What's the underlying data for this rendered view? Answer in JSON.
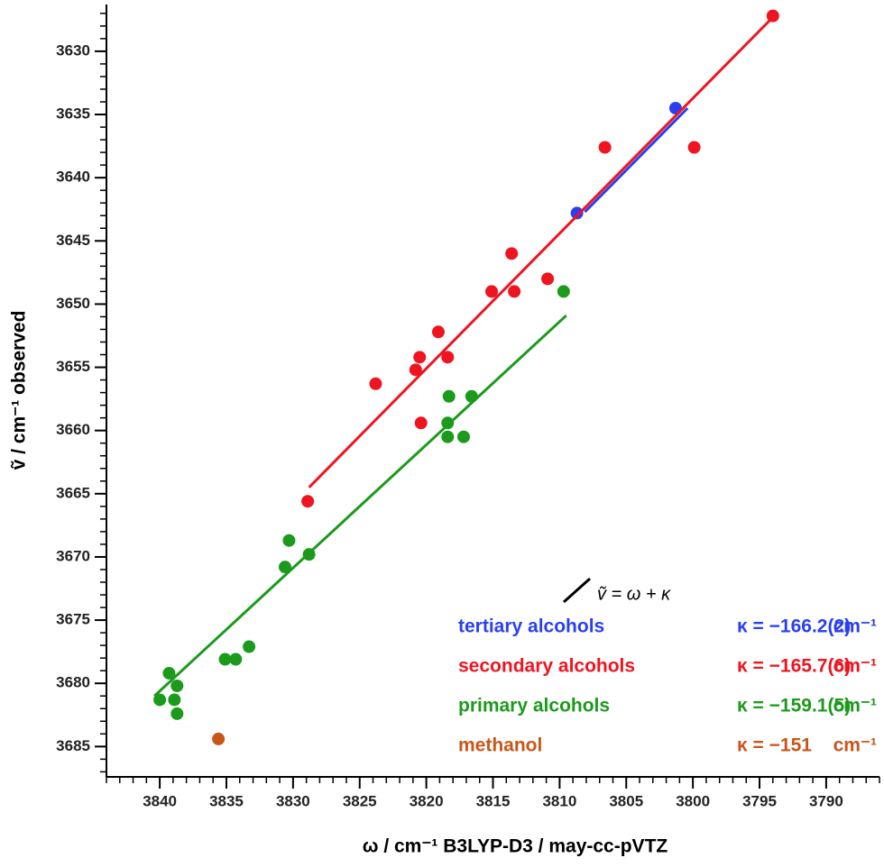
{
  "chart_data": {
    "type": "scatter",
    "x_label": "ω / cm⁻¹   B3LYP-D3 / may-cc-pVTZ",
    "y_label": "ṽ / cm⁻¹ observed",
    "equation": "ṽ = ω + κ",
    "xlim": [
      3844,
      3786
    ],
    "ylim": [
      3687.4,
      3626.3
    ],
    "xticks": [
      3840,
      3835,
      3830,
      3825,
      3820,
      3815,
      3810,
      3805,
      3800,
      3795,
      3790
    ],
    "yticks": [
      3630,
      3635,
      3640,
      3645,
      3650,
      3655,
      3660,
      3665,
      3670,
      3675,
      3680,
      3685
    ],
    "x_minor_step": 1,
    "y_minor_step": 1,
    "series": [
      {
        "name": "tertiary alcohols",
        "kappa": "κ = −166.2(2)",
        "kappa_unit": "cm⁻¹",
        "color": "#2a3ff0",
        "x": [
          3801.3,
          3808.7
        ],
        "y": [
          3634.5,
          3642.8
        ],
        "fit": {
          "x": [
            3808.1,
            3800.4
          ],
          "y": [
            3642.7,
            3634.5
          ]
        }
      },
      {
        "name": "secondary alcohols",
        "kappa": "κ = −165.7(6)",
        "kappa_unit": "cm⁻¹",
        "color": "#ee1420",
        "x": [
          3794.0,
          3806.6,
          3799.9,
          3813.6,
          3815.1,
          3813.4,
          3810.9,
          3819.1,
          3820.5,
          3820.8,
          3818.4,
          3823.8,
          3820.4,
          3828.9
        ],
        "y": [
          3627.2,
          3637.6,
          3637.6,
          3646.0,
          3649.0,
          3649.0,
          3648.0,
          3652.2,
          3654.2,
          3655.2,
          3654.2,
          3656.3,
          3659.4,
          3665.6
        ],
        "fit": {
          "x": [
            3828.8,
            3793.9
          ],
          "y": [
            3664.5,
            3627.2
          ]
        }
      },
      {
        "name": "primary alcohols",
        "kappa": "κ = −159.1(5)",
        "kappa_unit": "cm⁻¹",
        "color": "#1c9a1c",
        "x": [
          3809.7,
          3818.3,
          3816.6,
          3818.4,
          3818.4,
          3817.2,
          3830.3,
          3828.8,
          3830.6,
          3833.3,
          3834.3,
          3835.1,
          3839.3,
          3838.7,
          3838.9,
          3840.0,
          3838.7
        ],
        "y": [
          3649.0,
          3657.3,
          3657.3,
          3659.4,
          3660.5,
          3660.5,
          3668.7,
          3669.8,
          3670.8,
          3677.1,
          3678.1,
          3678.1,
          3679.2,
          3680.2,
          3681.3,
          3681.3,
          3682.4
        ],
        "fit": {
          "x": [
            3840.4,
            3809.5
          ],
          "y": [
            3681.0,
            3650.9
          ]
        }
      },
      {
        "name": "methanol",
        "kappa": "κ = −151",
        "kappa_unit": "cm⁻¹",
        "color": "#c8561a",
        "x": [
          3835.6
        ],
        "y": [
          3684.4
        ]
      }
    ]
  }
}
